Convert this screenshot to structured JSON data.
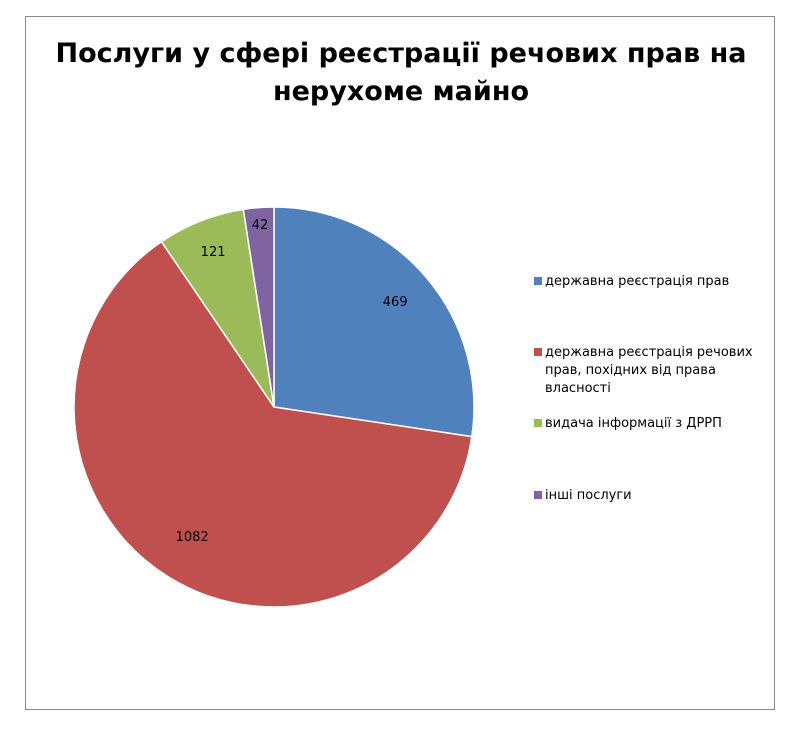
{
  "chart_data": {
    "type": "pie",
    "title_lines": [
      "Послуги у сфері реєстрації речових прав на",
      "нерухоме майно"
    ],
    "slices": [
      {
        "label": "державна реєстрація прав",
        "value": 469,
        "color": "#4f81bd"
      },
      {
        "label": "державна реєстрація речових прав, похідних від права власності",
        "value": 1082,
        "color": "#c0504d"
      },
      {
        "label": "видача інформації з ДРРП",
        "value": 121,
        "color": "#9bbb59"
      },
      {
        "label": "інші послуги",
        "value": 42,
        "color": "#8064a2"
      }
    ],
    "data_labels_shown": true,
    "start_angle": "12 o'clock",
    "direction": "clockwise",
    "legend_position": "right"
  }
}
